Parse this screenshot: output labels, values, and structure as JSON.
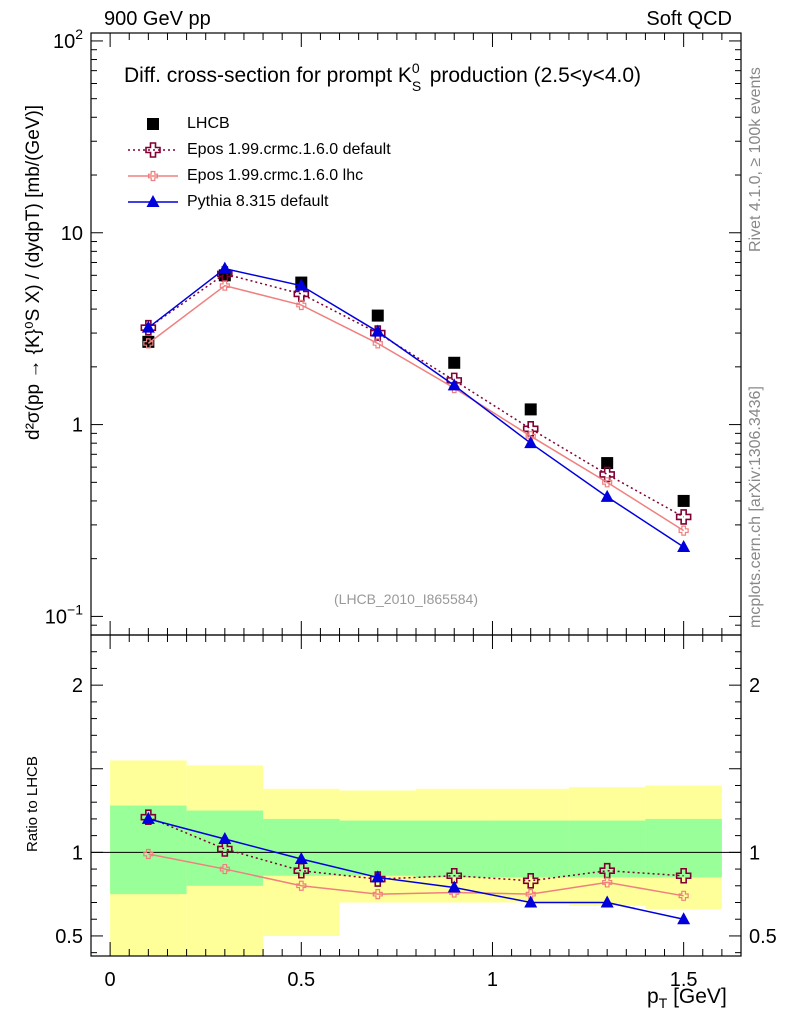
{
  "header": {
    "left": "900 GeV pp",
    "right": "Soft QCD"
  },
  "side_text": {
    "rivet": "Rivet 4.1.0, ≥ 100k events",
    "mcplots": "mcplots.cern.ch [arXiv:1306.3436]"
  },
  "chart_data": [
    {
      "type": "line",
      "title": "Diff. cross-section for prompt K⁰S production (2.5<y<4.0)",
      "title_parts": {
        "before": "Diff. cross-section for prompt K",
        "sup": "0",
        "sub": "S",
        "after": " production (2.5<y<4.0)"
      },
      "ylabel": "d²σ(pp → {K}⁰S X) / (dydpT) [mb/(GeV)]",
      "yscale": "log",
      "ylim": [
        0.08,
        110
      ],
      "xlim": [
        -0.05,
        1.65
      ],
      "yticks": [
        {
          "value": 0.1,
          "base": "10",
          "exp": "−1"
        },
        {
          "value": 1,
          "base": "1",
          "exp": ""
        },
        {
          "value": 10,
          "base": "10",
          "exp": ""
        },
        {
          "value": 100,
          "base": "10",
          "exp": "2"
        }
      ],
      "annotation": "(LHCB_2010_I865584)",
      "legend_position": "top-left",
      "x": [
        0.1,
        0.3,
        0.5,
        0.7,
        0.9,
        1.1,
        1.3,
        1.5
      ],
      "series": [
        {
          "name": "LHCB",
          "color": "#000000",
          "marker": "square",
          "line": "none",
          "values": [
            2.7,
            6.0,
            5.5,
            3.7,
            2.1,
            1.2,
            0.63,
            0.4
          ]
        },
        {
          "name": "Epos 1.99.crmc.1.6.0 default",
          "color": "#800033",
          "marker": "open-cross",
          "line": "dotted",
          "values": [
            3.2,
            6.1,
            4.8,
            3.0,
            1.7,
            0.95,
            0.55,
            0.33
          ]
        },
        {
          "name": "Epos 1.99.crmc.1.6.0 lhc",
          "color": "#f08080",
          "marker": "small-cross",
          "line": "solid",
          "values": [
            2.65,
            5.3,
            4.2,
            2.65,
            1.55,
            0.87,
            0.5,
            0.28
          ]
        },
        {
          "name": "Pythia 8.315 default",
          "color": "#0000dd",
          "marker": "triangle",
          "line": "solid",
          "values": [
            3.2,
            6.5,
            5.3,
            3.05,
            1.6,
            0.8,
            0.42,
            0.23
          ]
        }
      ]
    },
    {
      "type": "line",
      "title": "",
      "ylabel": "Ratio to LHCB",
      "xlabel": "pT [GeV]",
      "xlabel_parts": {
        "main": "p",
        "sub": "T",
        "unit": " [GeV]"
      },
      "ylim": [
        0.38,
        2.3
      ],
      "xlim": [
        -0.05,
        1.65
      ],
      "xticks": [
        {
          "value": 0,
          "label": "0"
        },
        {
          "value": 0.5,
          "label": "0.5"
        },
        {
          "value": 1,
          "label": "1"
        },
        {
          "value": 1.5,
          "label": "1.5"
        }
      ],
      "yticks": [
        {
          "value": 0.5,
          "label": "0.5"
        },
        {
          "value": 1,
          "label": "1"
        },
        {
          "value": 2,
          "label": "2"
        }
      ],
      "reference_line": 1,
      "bands": {
        "bins": [
          [
            0,
            0.2
          ],
          [
            0.2,
            0.4
          ],
          [
            0.4,
            0.6
          ],
          [
            0.6,
            0.8
          ],
          [
            0.8,
            1.0
          ],
          [
            1.0,
            1.2
          ],
          [
            1.2,
            1.4
          ],
          [
            1.4,
            1.6
          ]
        ],
        "outer_color": "#ffff99",
        "inner_color": "#99ff99",
        "outer_lo": [
          0.37,
          0.37,
          0.5,
          0.7,
          0.7,
          0.7,
          0.68,
          0.66
        ],
        "outer_hi": [
          1.55,
          1.52,
          1.38,
          1.37,
          1.38,
          1.38,
          1.39,
          1.4
        ],
        "inner_lo": [
          0.75,
          0.8,
          0.86,
          0.86,
          0.85,
          0.85,
          0.85,
          0.85
        ],
        "inner_hi": [
          1.28,
          1.25,
          1.2,
          1.19,
          1.19,
          1.19,
          1.19,
          1.2
        ]
      },
      "x": [
        0.1,
        0.3,
        0.5,
        0.7,
        0.9,
        1.1,
        1.3,
        1.5
      ],
      "series": [
        {
          "name": "Epos 1.99.crmc.1.6.0 default",
          "color": "#800033",
          "marker": "open-cross",
          "line": "dotted",
          "values": [
            1.21,
            1.02,
            0.89,
            0.84,
            0.86,
            0.83,
            0.89,
            0.86
          ]
        },
        {
          "name": "Epos 1.99.crmc.1.6.0 lhc",
          "color": "#f08080",
          "marker": "small-cross",
          "line": "solid",
          "values": [
            0.99,
            0.9,
            0.8,
            0.75,
            0.76,
            0.75,
            0.82,
            0.74
          ]
        },
        {
          "name": "Pythia 8.315 default",
          "color": "#0000dd",
          "marker": "triangle",
          "line": "solid",
          "values": [
            1.2,
            1.08,
            0.96,
            0.85,
            0.79,
            0.7,
            0.7,
            0.6
          ]
        }
      ]
    }
  ]
}
